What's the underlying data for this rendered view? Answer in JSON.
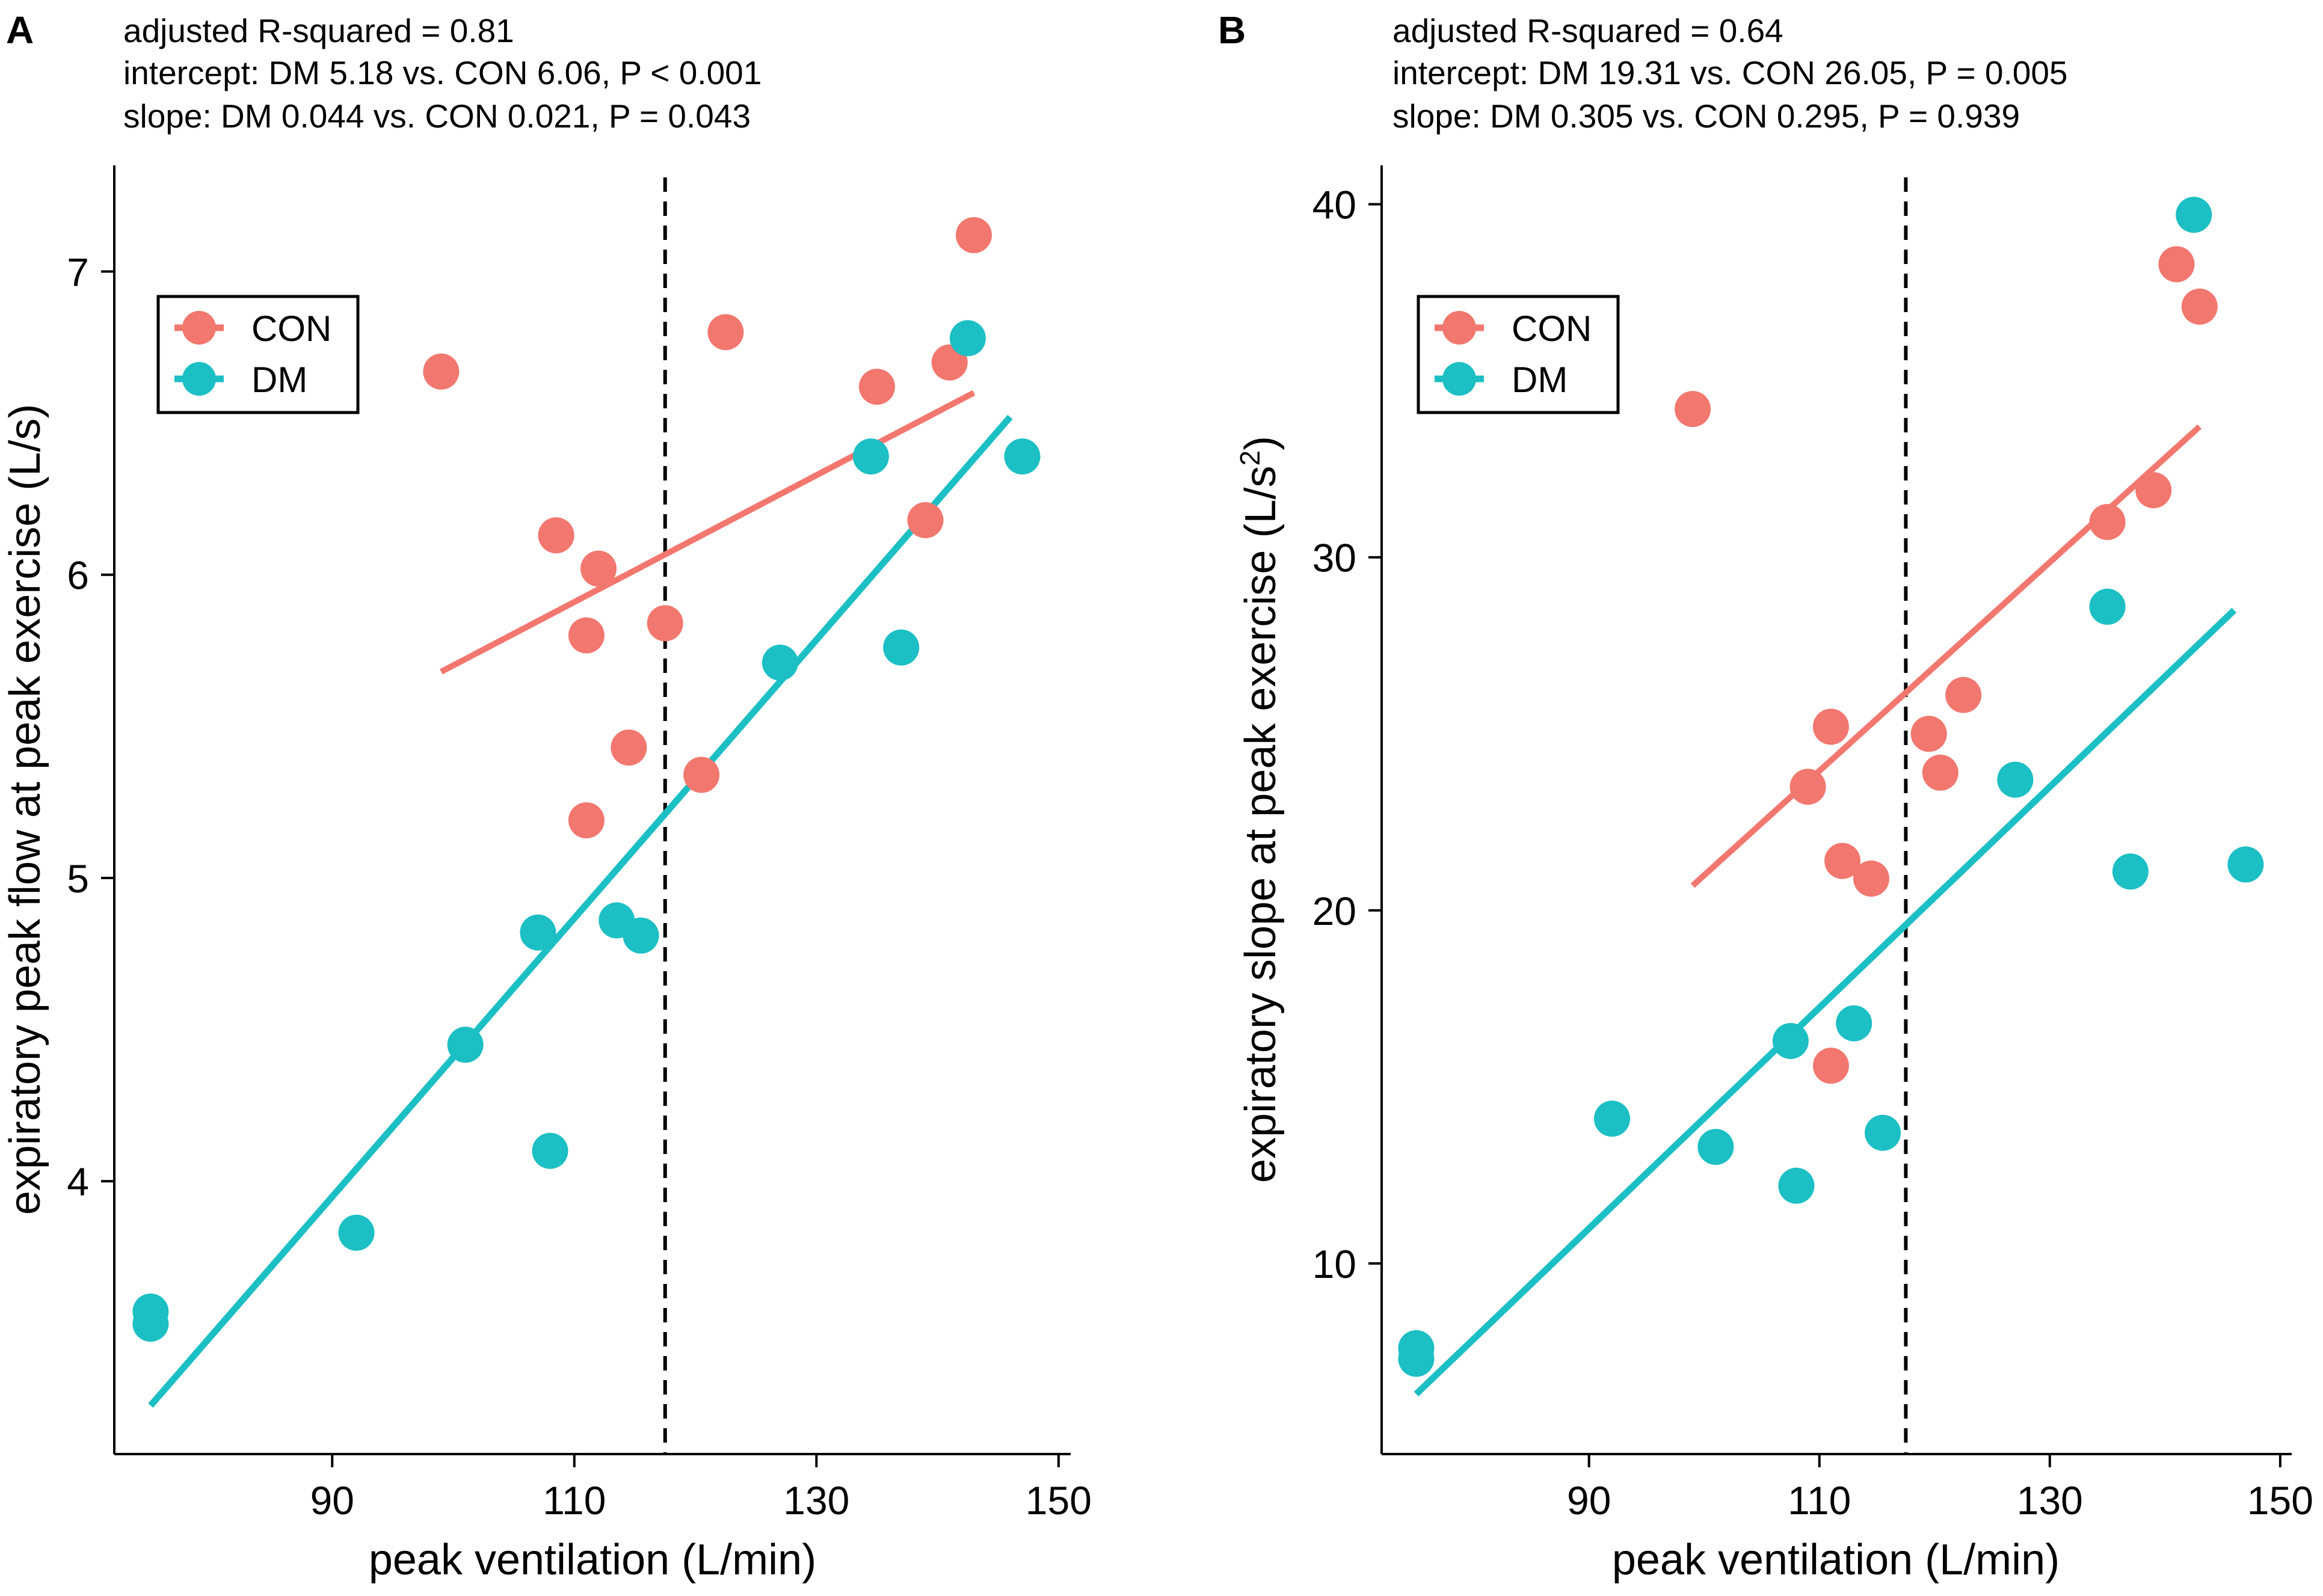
{
  "colors": {
    "con": "#F2776E",
    "dm": "#1BBFC4",
    "axis": "#000000",
    "vline": "#000000"
  },
  "chart_data": [
    {
      "type": "scatter",
      "panel": "A",
      "stats": [
        "adjusted R-squared =  0.81",
        "intercept: DM 5.18  vs. CON 6.06, P < 0.001",
        "slope: DM 0.044  vs. CON 0.021, P = 0.043"
      ],
      "xlabel": "peak ventilation (L/min)",
      "ylabel": "expiratory peak flow at peak exercise (L/s)",
      "ylabel_sup": "",
      "ylabel_tail": "",
      "xlim": [
        72,
        151
      ],
      "ylim": [
        3.1,
        7.35
      ],
      "xticks": [
        90,
        110,
        130,
        150
      ],
      "yticks": [
        4,
        5,
        6,
        7
      ],
      "vline_x": 117.5,
      "legend": {
        "position": "top-left",
        "entries": [
          "CON",
          "DM"
        ]
      },
      "series": [
        {
          "name": "CON",
          "color_key": "con",
          "points": [
            [
              99,
              6.67
            ],
            [
              108.5,
              6.13
            ],
            [
              112,
              6.02
            ],
            [
              111,
              5.8
            ],
            [
              117.5,
              5.84
            ],
            [
              114.5,
              5.43
            ],
            [
              111,
              5.19
            ],
            [
              122.5,
              6.8
            ],
            [
              135,
              6.62
            ],
            [
              141,
              6.7
            ],
            [
              143,
              7.12
            ],
            [
              139,
              6.18
            ],
            [
              120.5,
              5.34
            ]
          ],
          "fit": [
            [
              99,
              5.68
            ],
            [
              143,
              6.6
            ]
          ]
        },
        {
          "name": "DM",
          "color_key": "dm",
          "points": [
            [
              75,
              3.57
            ],
            [
              75,
              3.53
            ],
            [
              92,
              3.83
            ],
            [
              101,
              4.45
            ],
            [
              107,
              4.82
            ],
            [
              108,
              4.1
            ],
            [
              113.5,
              4.86
            ],
            [
              115.5,
              4.81
            ],
            [
              127,
              5.71
            ],
            [
              134.5,
              6.39
            ],
            [
              137,
              5.76
            ],
            [
              142.5,
              6.78
            ],
            [
              147,
              6.39
            ]
          ],
          "fit": [
            [
              75,
              3.26
            ],
            [
              146,
              6.52
            ]
          ]
        }
      ]
    },
    {
      "type": "scatter",
      "panel": "B",
      "stats": [
        "adjusted R-squared =  0.64",
        "intercept: DM 19.31  vs. CON 26.05, P = 0.005",
        "slope: DM 0.305  vs. CON 0.295, P = 0.939"
      ],
      "xlabel": "peak ventilation (L/min)",
      "ylabel": "expiratory slope at peak exercise (L/s",
      "ylabel_sup": "2",
      "ylabel_tail": ")",
      "xlim": [
        72,
        151
      ],
      "ylim": [
        4.6,
        41.1
      ],
      "xticks": [
        90,
        110,
        130,
        150
      ],
      "yticks": [
        10,
        20,
        30,
        40
      ],
      "vline_x": 117.5,
      "legend": {
        "position": "top-left",
        "entries": [
          "CON",
          "DM"
        ]
      },
      "series": [
        {
          "name": "CON",
          "color_key": "con",
          "points": [
            [
              99,
              34.2
            ],
            [
              109,
              23.5
            ],
            [
              111,
              25.2
            ],
            [
              112,
              21.4
            ],
            [
              114.5,
              20.9
            ],
            [
              119.5,
              25.0
            ],
            [
              120.5,
              23.9
            ],
            [
              122.5,
              26.1
            ],
            [
              111,
              15.6
            ],
            [
              135,
              31.0
            ],
            [
              139,
              31.9
            ],
            [
              141,
              38.3
            ],
            [
              143,
              37.1
            ]
          ],
          "fit": [
            [
              99,
              20.7
            ],
            [
              143,
              33.7
            ]
          ]
        },
        {
          "name": "DM",
          "color_key": "dm",
          "points": [
            [
              75,
              7.6
            ],
            [
              75,
              7.3
            ],
            [
              92,
              14.1
            ],
            [
              101,
              13.3
            ],
            [
              107.5,
              16.3
            ],
            [
              108,
              12.2
            ],
            [
              113,
              16.8
            ],
            [
              115.5,
              13.7
            ],
            [
              127,
              23.7
            ],
            [
              135,
              28.6
            ],
            [
              137,
              21.1
            ],
            [
              142.5,
              39.7
            ],
            [
              147,
              21.3
            ]
          ],
          "fit": [
            [
              75,
              6.3
            ],
            [
              146,
              28.5
            ]
          ]
        }
      ]
    }
  ]
}
